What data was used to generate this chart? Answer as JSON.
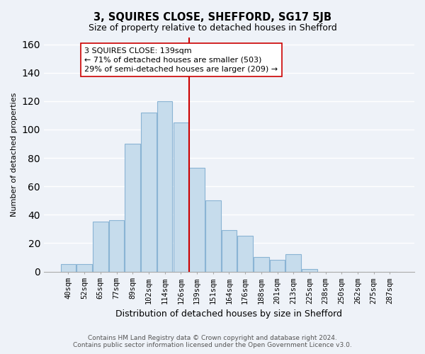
{
  "title": "3, SQUIRES CLOSE, SHEFFORD, SG17 5JB",
  "subtitle": "Size of property relative to detached houses in Shefford",
  "xlabel": "Distribution of detached houses by size in Shefford",
  "ylabel": "Number of detached properties",
  "footer_line1": "Contains HM Land Registry data © Crown copyright and database right 2024.",
  "footer_line2": "Contains public sector information licensed under the Open Government Licence v3.0.",
  "bar_labels": [
    "40sqm",
    "52sqm",
    "65sqm",
    "77sqm",
    "89sqm",
    "102sqm",
    "114sqm",
    "126sqm",
    "139sqm",
    "151sqm",
    "164sqm",
    "176sqm",
    "188sqm",
    "201sqm",
    "213sqm",
    "225sqm",
    "238sqm",
    "250sqm",
    "262sqm",
    "275sqm",
    "287sqm"
  ],
  "bar_heights": [
    5,
    5,
    35,
    36,
    90,
    112,
    120,
    105,
    73,
    50,
    29,
    25,
    10,
    8,
    12,
    2,
    0,
    0,
    0,
    0,
    0
  ],
  "bar_color": "#c6dcec",
  "bar_edgecolor": "#8ab4d4",
  "vline_color": "#cc0000",
  "ylim": [
    0,
    165
  ],
  "yticks": [
    0,
    20,
    40,
    60,
    80,
    100,
    120,
    140,
    160
  ],
  "annotation_title": "3 SQUIRES CLOSE: 139sqm",
  "annotation_line1": "← 71% of detached houses are smaller (503)",
  "annotation_line2": "29% of semi-detached houses are larger (209) →",
  "box_edgecolor": "#cc0000",
  "background_color": "#eef2f8",
  "grid_color": "#ffffff",
  "title_fontsize": 10.5,
  "subtitle_fontsize": 9,
  "ylabel_fontsize": 8,
  "xlabel_fontsize": 9,
  "tick_fontsize": 7.5,
  "annotation_fontsize": 8,
  "footer_fontsize": 6.5
}
